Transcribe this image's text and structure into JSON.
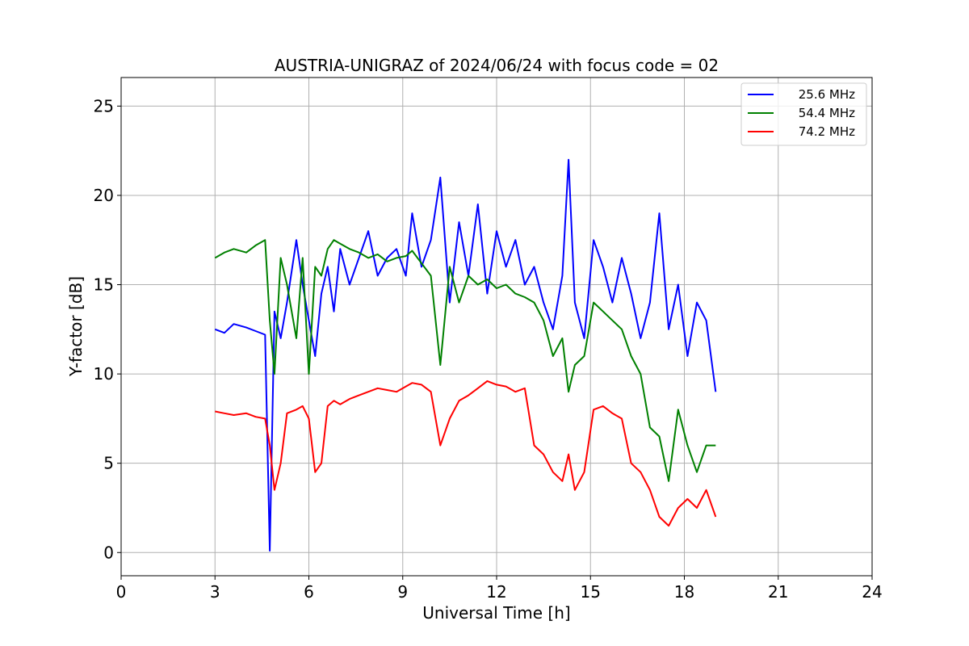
{
  "chart_data": {
    "type": "line",
    "title": "AUSTRIA-UNIGRAZ of 2024/06/24 with focus code = 02",
    "xlabel": "Universal Time [h]",
    "ylabel": "Y-factor [dB]",
    "xlim": [
      0,
      24
    ],
    "ylim": [
      -1.3,
      26.6
    ],
    "xticks": [
      0,
      3,
      6,
      9,
      12,
      15,
      18,
      21,
      24
    ],
    "yticks": [
      0,
      5,
      10,
      15,
      20,
      25
    ],
    "grid": true,
    "legend_position": "top-right",
    "series": [
      {
        "name": "25.6 MHz",
        "color": "#0000ff",
        "x": [
          3.0,
          3.3,
          3.6,
          4.0,
          4.3,
          4.6,
          4.75,
          4.9,
          5.1,
          5.3,
          5.6,
          5.8,
          6.0,
          6.2,
          6.4,
          6.6,
          6.8,
          7.0,
          7.3,
          7.6,
          7.9,
          8.2,
          8.5,
          8.8,
          9.1,
          9.3,
          9.6,
          9.9,
          10.2,
          10.5,
          10.8,
          11.1,
          11.4,
          11.7,
          12.0,
          12.3,
          12.6,
          12.9,
          13.2,
          13.5,
          13.8,
          14.1,
          14.3,
          14.5,
          14.8,
          15.1,
          15.4,
          15.7,
          16.0,
          16.3,
          16.6,
          16.9,
          17.2,
          17.5,
          17.8,
          18.1,
          18.4,
          18.7,
          19.0
        ],
        "values": [
          12.5,
          12.3,
          12.8,
          12.6,
          12.4,
          12.2,
          0.1,
          13.5,
          12.0,
          14.0,
          17.5,
          15.0,
          13.0,
          11.0,
          14.5,
          16.0,
          13.5,
          17.0,
          15.0,
          16.5,
          18.0,
          15.5,
          16.5,
          17.0,
          15.5,
          19.0,
          16.0,
          17.5,
          21.0,
          14.0,
          18.5,
          15.5,
          19.5,
          14.5,
          18.0,
          16.0,
          17.5,
          15.0,
          16.0,
          14.0,
          12.5,
          15.5,
          22.0,
          14.0,
          12.0,
          17.5,
          16.0,
          14.0,
          16.5,
          14.5,
          12.0,
          14.0,
          19.0,
          12.5,
          15.0,
          11.0,
          14.0,
          13.0,
          9.0
        ]
      },
      {
        "name": "54.4 MHz",
        "color": "#008000",
        "x": [
          3.0,
          3.3,
          3.6,
          4.0,
          4.3,
          4.6,
          4.75,
          4.9,
          5.1,
          5.3,
          5.6,
          5.8,
          6.0,
          6.2,
          6.4,
          6.6,
          6.8,
          7.0,
          7.3,
          7.6,
          7.9,
          8.2,
          8.5,
          8.8,
          9.1,
          9.3,
          9.6,
          9.9,
          10.2,
          10.5,
          10.8,
          11.1,
          11.4,
          11.7,
          12.0,
          12.3,
          12.6,
          12.9,
          13.2,
          13.5,
          13.8,
          14.1,
          14.3,
          14.5,
          14.8,
          15.1,
          15.4,
          15.7,
          16.0,
          16.3,
          16.6,
          16.9,
          17.2,
          17.5,
          17.8,
          18.1,
          18.4,
          18.7,
          19.0
        ],
        "values": [
          16.5,
          16.8,
          17.0,
          16.8,
          17.2,
          17.5,
          13.0,
          10.0,
          16.5,
          15.0,
          12.0,
          16.5,
          10.0,
          16.0,
          15.5,
          17.0,
          17.5,
          17.3,
          17.0,
          16.8,
          16.5,
          16.7,
          16.3,
          16.5,
          16.6,
          16.9,
          16.2,
          15.5,
          10.5,
          16.0,
          14.0,
          15.5,
          15.0,
          15.3,
          14.8,
          15.0,
          14.5,
          14.3,
          14.0,
          13.0,
          11.0,
          12.0,
          9.0,
          10.5,
          11.0,
          14.0,
          13.5,
          13.0,
          12.5,
          11.0,
          10.0,
          7.0,
          6.5,
          4.0,
          8.0,
          6.0,
          4.5,
          6.0,
          6.0
        ]
      },
      {
        "name": "74.2 MHz",
        "color": "#ff0000",
        "x": [
          3.0,
          3.3,
          3.6,
          4.0,
          4.3,
          4.6,
          4.75,
          4.9,
          5.1,
          5.3,
          5.6,
          5.8,
          6.0,
          6.2,
          6.4,
          6.6,
          6.8,
          7.0,
          7.3,
          7.6,
          7.9,
          8.2,
          8.5,
          8.8,
          9.1,
          9.3,
          9.6,
          9.9,
          10.2,
          10.5,
          10.8,
          11.1,
          11.4,
          11.7,
          12.0,
          12.3,
          12.6,
          12.9,
          13.2,
          13.5,
          13.8,
          14.1,
          14.3,
          14.5,
          14.8,
          15.1,
          15.4,
          15.7,
          16.0,
          16.3,
          16.6,
          16.9,
          17.2,
          17.5,
          17.8,
          18.1,
          18.4,
          18.7,
          19.0
        ],
        "values": [
          7.9,
          7.8,
          7.7,
          7.8,
          7.6,
          7.5,
          6.0,
          3.5,
          5.0,
          7.8,
          8.0,
          8.2,
          7.5,
          4.5,
          5.0,
          8.2,
          8.5,
          8.3,
          8.6,
          8.8,
          9.0,
          9.2,
          9.1,
          9.0,
          9.3,
          9.5,
          9.4,
          9.0,
          6.0,
          7.5,
          8.5,
          8.8,
          9.2,
          9.6,
          9.4,
          9.3,
          9.0,
          9.2,
          6.0,
          5.5,
          4.5,
          4.0,
          5.5,
          3.5,
          4.5,
          8.0,
          8.2,
          7.8,
          7.5,
          5.0,
          4.5,
          3.5,
          2.0,
          1.5,
          2.5,
          3.0,
          2.5,
          3.5,
          2.0
        ]
      }
    ]
  }
}
